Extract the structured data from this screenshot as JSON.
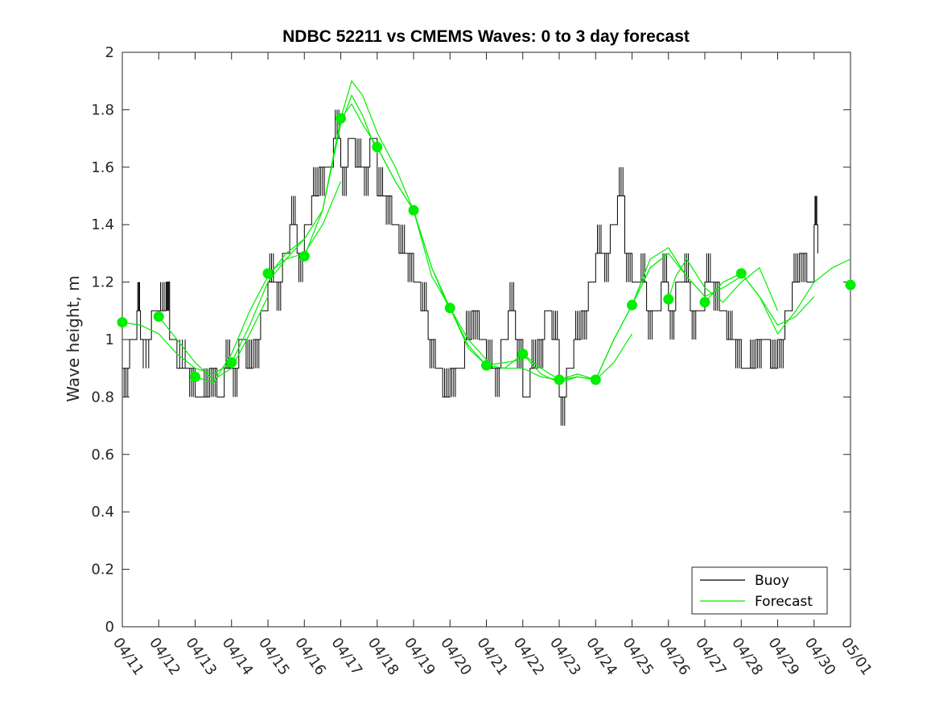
{
  "chart_data": {
    "type": "line",
    "title": "NDBC 52211 vs CMEMS Waves: 0 to 3 day forecast",
    "xlabel": "",
    "ylabel": "Wave height, m",
    "ylim": [
      0,
      2
    ],
    "yticks": [
      "0",
      "0.2",
      "0.4",
      "0.6",
      "0.8",
      "1",
      "1.2",
      "1.4",
      "1.6",
      "1.8",
      "2"
    ],
    "xlim": [
      "04/11",
      "05/01"
    ],
    "xticks": [
      "04/11",
      "04/12",
      "04/13",
      "04/14",
      "04/15",
      "04/16",
      "04/17",
      "04/18",
      "04/19",
      "04/20",
      "04/21",
      "04/22",
      "04/23",
      "04/24",
      "04/25",
      "04/26",
      "04/27",
      "04/28",
      "04/29",
      "04/30",
      "05/01"
    ],
    "grid": false,
    "legend": {
      "placement": "bottom-right",
      "entries": [
        "Buoy",
        "Forecast"
      ]
    },
    "colors": {
      "buoy": "#000000",
      "forecast": "#00ee00"
    },
    "series": [
      {
        "name": "Buoy",
        "x_day": [
          0.0,
          0.2,
          0.4,
          0.5,
          0.8,
          1.0,
          1.2,
          1.3,
          1.5,
          1.8,
          2.0,
          2.2,
          2.4,
          2.6,
          2.8,
          3.0,
          3.2,
          3.4,
          3.6,
          3.8,
          4.0,
          4.2,
          4.4,
          4.6,
          4.8,
          5.0,
          5.2,
          5.4,
          5.6,
          5.8,
          6.0,
          6.2,
          6.4,
          6.6,
          6.8,
          7.0,
          7.2,
          7.4,
          7.6,
          7.8,
          8.0,
          8.2,
          8.4,
          8.6,
          8.8,
          9.0,
          9.2,
          9.4,
          9.6,
          9.8,
          10.0,
          10.2,
          10.4,
          10.6,
          10.8,
          11.0,
          11.2,
          11.4,
          11.6,
          11.8,
          12.0,
          12.2,
          12.4,
          12.6,
          12.8,
          13.0,
          13.2,
          13.4,
          13.6,
          13.8,
          14.0,
          14.2,
          14.4,
          14.6,
          14.8,
          15.0,
          15.2,
          15.4,
          15.6,
          15.8,
          16.0,
          16.2,
          16.4,
          16.6,
          16.8,
          17.0,
          17.2,
          17.4,
          17.6,
          17.8,
          18.0,
          18.2,
          18.4,
          18.6,
          18.8,
          19.0,
          19.1
        ],
        "values": [
          0.9,
          1.0,
          1.1,
          1.0,
          1.1,
          1.1,
          1.2,
          1.0,
          0.9,
          0.9,
          0.8,
          0.8,
          0.9,
          0.8,
          0.9,
          0.9,
          1.0,
          0.9,
          1.0,
          1.1,
          1.2,
          1.2,
          1.3,
          1.4,
          1.3,
          1.4,
          1.5,
          1.6,
          1.6,
          1.7,
          1.6,
          1.7,
          1.6,
          1.6,
          1.7,
          1.5,
          1.5,
          1.4,
          1.3,
          1.3,
          1.2,
          1.1,
          1.0,
          0.9,
          0.8,
          0.9,
          0.9,
          1.0,
          1.1,
          1.0,
          0.9,
          0.9,
          1.0,
          1.1,
          1.0,
          0.8,
          0.9,
          1.0,
          1.1,
          1.0,
          0.8,
          0.9,
          1.0,
          1.1,
          1.2,
          1.3,
          1.3,
          1.4,
          1.5,
          1.3,
          1.2,
          1.2,
          1.1,
          1.1,
          1.2,
          1.1,
          1.2,
          1.2,
          1.1,
          1.1,
          1.2,
          1.2,
          1.1,
          1.0,
          1.0,
          0.9,
          0.9,
          1.0,
          1.0,
          0.9,
          1.0,
          1.1,
          1.2,
          1.3,
          1.2,
          1.4,
          1.3
        ]
      },
      {
        "name": "Forecast",
        "runs": [
          {
            "x_day": [
              0.0,
              0.5,
              1.0,
              1.5,
              2.0,
              2.5,
              3.0
            ],
            "values": [
              1.06,
              1.05,
              1.02,
              0.95,
              0.9,
              0.88,
              0.92
            ]
          },
          {
            "x_day": [
              1.0,
              1.5,
              2.0,
              2.5,
              3.0,
              3.5,
              4.0
            ],
            "values": [
              1.08,
              1.0,
              0.92,
              0.86,
              0.9,
              1.02,
              1.15
            ]
          },
          {
            "x_day": [
              2.0,
              2.5,
              3.0,
              3.5,
              4.0,
              4.5,
              5.0
            ],
            "values": [
              0.87,
              0.85,
              0.95,
              1.1,
              1.22,
              1.3,
              1.35
            ]
          },
          {
            "x_day": [
              3.0,
              3.5,
              4.0,
              4.5,
              5.0,
              5.5,
              6.0
            ],
            "values": [
              0.92,
              1.05,
              1.2,
              1.28,
              1.3,
              1.4,
              1.55
            ]
          },
          {
            "x_day": [
              4.0,
              4.5,
              5.0,
              5.5,
              6.0,
              6.3,
              6.6,
              7.0
            ],
            "values": [
              1.23,
              1.28,
              1.35,
              1.45,
              1.75,
              1.85,
              1.78,
              1.65
            ]
          },
          {
            "x_day": [
              5.0,
              5.5,
              6.0,
              6.3,
              6.6,
              7.0,
              7.5,
              8.0
            ],
            "values": [
              1.29,
              1.45,
              1.77,
              1.9,
              1.85,
              1.72,
              1.6,
              1.45
            ]
          },
          {
            "x_day": [
              6.0,
              6.3,
              6.6,
              7.0,
              7.5,
              8.0,
              8.5,
              9.0
            ],
            "values": [
              1.77,
              1.82,
              1.75,
              1.67,
              1.55,
              1.45,
              1.25,
              1.1
            ]
          },
          {
            "x_day": [
              7.0,
              7.5,
              8.0,
              8.5,
              9.0,
              9.5,
              10.0
            ],
            "values": [
              1.67,
              1.55,
              1.45,
              1.25,
              1.11,
              1.0,
              0.93
            ]
          },
          {
            "x_day": [
              8.0,
              8.5,
              9.0,
              9.5,
              10.0,
              10.5,
              11.0
            ],
            "values": [
              1.45,
              1.22,
              1.11,
              0.98,
              0.91,
              0.92,
              0.93
            ]
          },
          {
            "x_day": [
              9.0,
              9.5,
              10.0,
              10.5,
              11.0,
              11.5,
              12.0
            ],
            "values": [
              1.11,
              0.97,
              0.91,
              0.9,
              0.9,
              0.87,
              0.86
            ]
          },
          {
            "x_day": [
              10.0,
              10.5,
              11.0,
              11.5,
              12.0,
              12.5,
              13.0
            ],
            "values": [
              0.91,
              0.9,
              0.95,
              0.88,
              0.85,
              0.87,
              0.86
            ]
          },
          {
            "x_day": [
              11.0,
              11.5,
              12.0,
              12.5,
              13.0,
              13.5,
              14.0
            ],
            "values": [
              0.95,
              0.9,
              0.86,
              0.87,
              0.86,
              0.92,
              1.02
            ]
          },
          {
            "x_day": [
              12.0,
              12.5,
              13.0,
              13.5,
              14.0,
              14.5,
              15.0
            ],
            "values": [
              0.86,
              0.88,
              0.86,
              1.0,
              1.12,
              1.25,
              1.3
            ]
          },
          {
            "x_day": [
              13.0,
              13.5,
              14.0,
              14.5,
              15.0,
              15.5,
              16.0
            ],
            "values": [
              0.86,
              1.0,
              1.12,
              1.28,
              1.32,
              1.22,
              1.15
            ]
          },
          {
            "x_day": [
              14.0,
              14.5,
              15.0,
              15.5,
              16.0,
              16.5,
              17.0
            ],
            "values": [
              1.12,
              1.25,
              1.3,
              1.22,
              1.15,
              1.18,
              1.22
            ]
          },
          {
            "x_day": [
              15.0,
              15.2,
              15.5,
              16.0,
              16.5,
              17.0,
              17.5,
              18.0
            ],
            "values": [
              1.14,
              1.22,
              1.28,
              1.18,
              1.13,
              1.2,
              1.25,
              1.1
            ]
          },
          {
            "x_day": [
              16.0,
              16.5,
              17.0,
              17.5,
              18.0,
              18.5,
              19.0
            ],
            "values": [
              1.13,
              1.2,
              1.23,
              1.15,
              1.05,
              1.08,
              1.15
            ]
          },
          {
            "x_day": [
              17.0,
              17.5,
              18.0,
              18.5,
              19.0,
              19.5,
              20.0
            ],
            "values": [
              1.23,
              1.15,
              1.02,
              1.1,
              1.2,
              1.25,
              1.28
            ]
          }
        ],
        "analysis_points": {
          "x_day": [
            0,
            1,
            2,
            3,
            4,
            5,
            6,
            7,
            8,
            9,
            10,
            11,
            12,
            13,
            14,
            15,
            16,
            17,
            20
          ],
          "values": [
            1.06,
            1.08,
            0.87,
            0.92,
            1.23,
            1.29,
            1.77,
            1.67,
            1.45,
            1.11,
            0.91,
            0.95,
            0.86,
            0.86,
            1.12,
            1.14,
            1.13,
            1.23,
            1.19
          ]
        }
      }
    ]
  }
}
